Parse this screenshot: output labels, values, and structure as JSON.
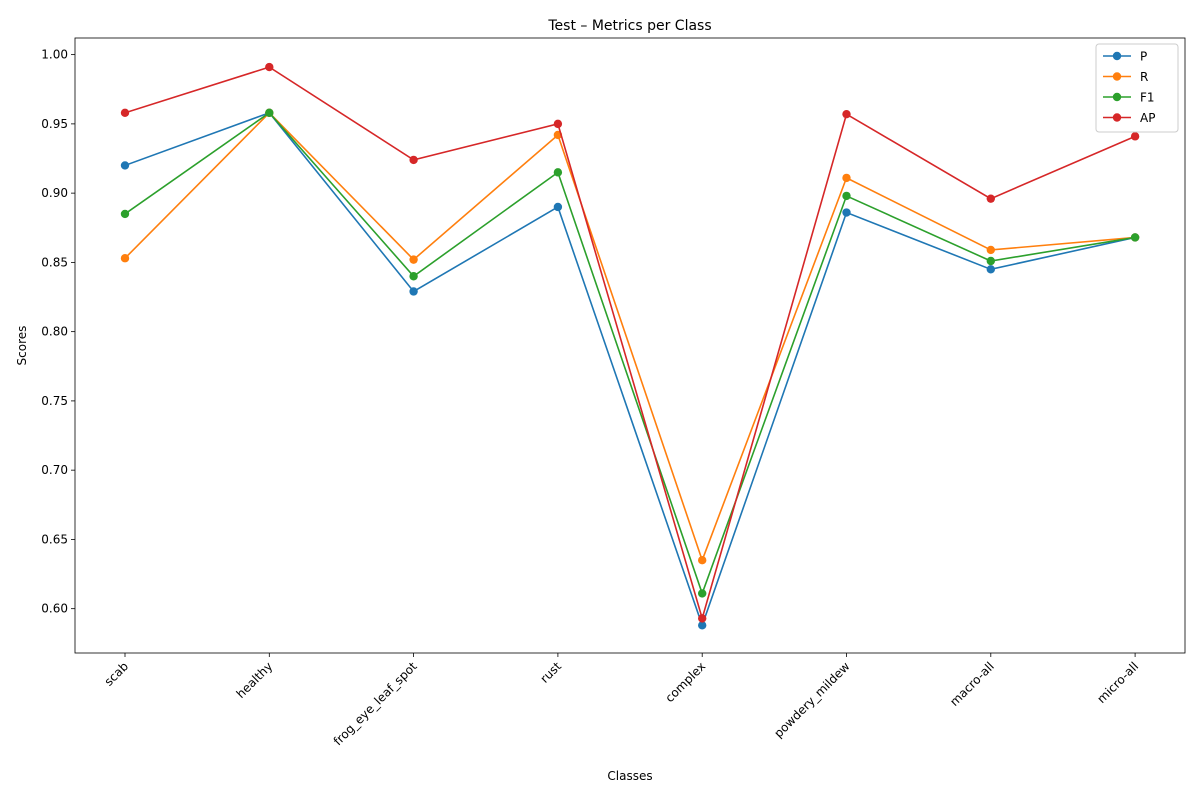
{
  "chart_data": {
    "type": "line",
    "title": "Test – Metrics per Class",
    "xlabel": "Classes",
    "ylabel": "Scores",
    "categories": [
      "scab",
      "healthy",
      "frog_eye_leaf_spot",
      "rust",
      "complex",
      "powdery_mildew",
      "macro-all",
      "micro-all"
    ],
    "ylim": [
      0.568,
      1.012
    ],
    "yticks": [
      "0.60",
      "0.65",
      "0.70",
      "0.75",
      "0.80",
      "0.85",
      "0.90",
      "0.95",
      "1.00"
    ],
    "grid": false,
    "legend_position": "top-right",
    "series": [
      {
        "name": "P",
        "color": "#1f77b4",
        "values": [
          0.92,
          0.958,
          0.829,
          0.89,
          0.588,
          0.886,
          0.845,
          0.868
        ]
      },
      {
        "name": "R",
        "color": "#ff7f0e",
        "values": [
          0.853,
          0.958,
          0.852,
          0.942,
          0.635,
          0.911,
          0.859,
          0.868
        ]
      },
      {
        "name": "F1",
        "color": "#2ca02c",
        "values": [
          0.885,
          0.958,
          0.84,
          0.915,
          0.611,
          0.898,
          0.851,
          0.868
        ]
      },
      {
        "name": "AP",
        "color": "#d62728",
        "values": [
          0.958,
          0.991,
          0.924,
          0.95,
          0.593,
          0.957,
          0.896,
          0.941
        ]
      }
    ]
  }
}
